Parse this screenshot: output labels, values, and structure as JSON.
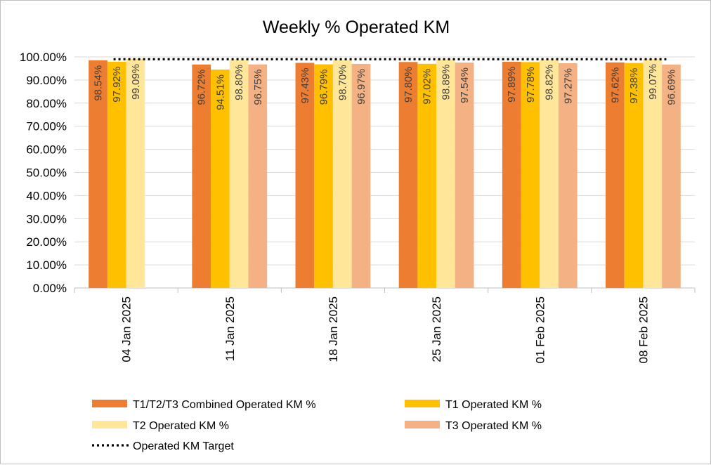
{
  "chart_data": {
    "type": "bar",
    "title": "Weekly % Operated KM",
    "xlabel": "",
    "ylabel": "",
    "ylim": [
      0,
      100
    ],
    "y_ticks": [
      "0.00%",
      "10.00%",
      "20.00%",
      "30.00%",
      "40.00%",
      "50.00%",
      "60.00%",
      "70.00%",
      "80.00%",
      "90.00%",
      "100.00%"
    ],
    "categories": [
      "04 Jan 2025",
      "11 Jan 2025",
      "18 Jan 2025",
      "25 Jan 2025",
      "01 Feb 2025",
      "08 Feb 2025"
    ],
    "series": [
      {
        "name": "T1/T2/T3 Combined Operated KM %",
        "color": "#ED7D31",
        "values": [
          98.54,
          96.72,
          97.43,
          97.8,
          97.89,
          97.62
        ],
        "labels": [
          "98.54%",
          "96.72%",
          "97.43%",
          "97.80%",
          "97.89%",
          "97.62%"
        ]
      },
      {
        "name": "T1 Operated KM %",
        "color": "#FFC000",
        "values": [
          97.92,
          94.51,
          96.79,
          97.02,
          97.78,
          97.38
        ],
        "labels": [
          "97.92%",
          "94.51%",
          "96.79%",
          "97.02%",
          "97.78%",
          "97.38%"
        ]
      },
      {
        "name": "T2 Operated KM %",
        "color": "#FFE699",
        "values": [
          99.09,
          98.8,
          98.7,
          98.89,
          98.82,
          99.07
        ],
        "labels": [
          "99.09%",
          "98.80%",
          "98.70%",
          "98.89%",
          "98.82%",
          "99.07%"
        ]
      },
      {
        "name": "T3 Operated KM %",
        "color": "#F4B183",
        "values": [
          null,
          96.75,
          96.97,
          97.54,
          97.27,
          96.69
        ],
        "labels": [
          "",
          "96.75%",
          "96.97%",
          "97.54%",
          "97.27%",
          "96.69%"
        ]
      }
    ],
    "target": {
      "name": "Operated KM Target",
      "value": 99,
      "style": "dotted",
      "color": "#000000"
    },
    "legend": {
      "placement": "bottom",
      "items": [
        "T1/T2/T3 Combined Operated KM %",
        "T1 Operated KM %",
        "T2 Operated KM %",
        "T3 Operated KM %",
        "Operated KM Target"
      ]
    },
    "grid": true
  }
}
